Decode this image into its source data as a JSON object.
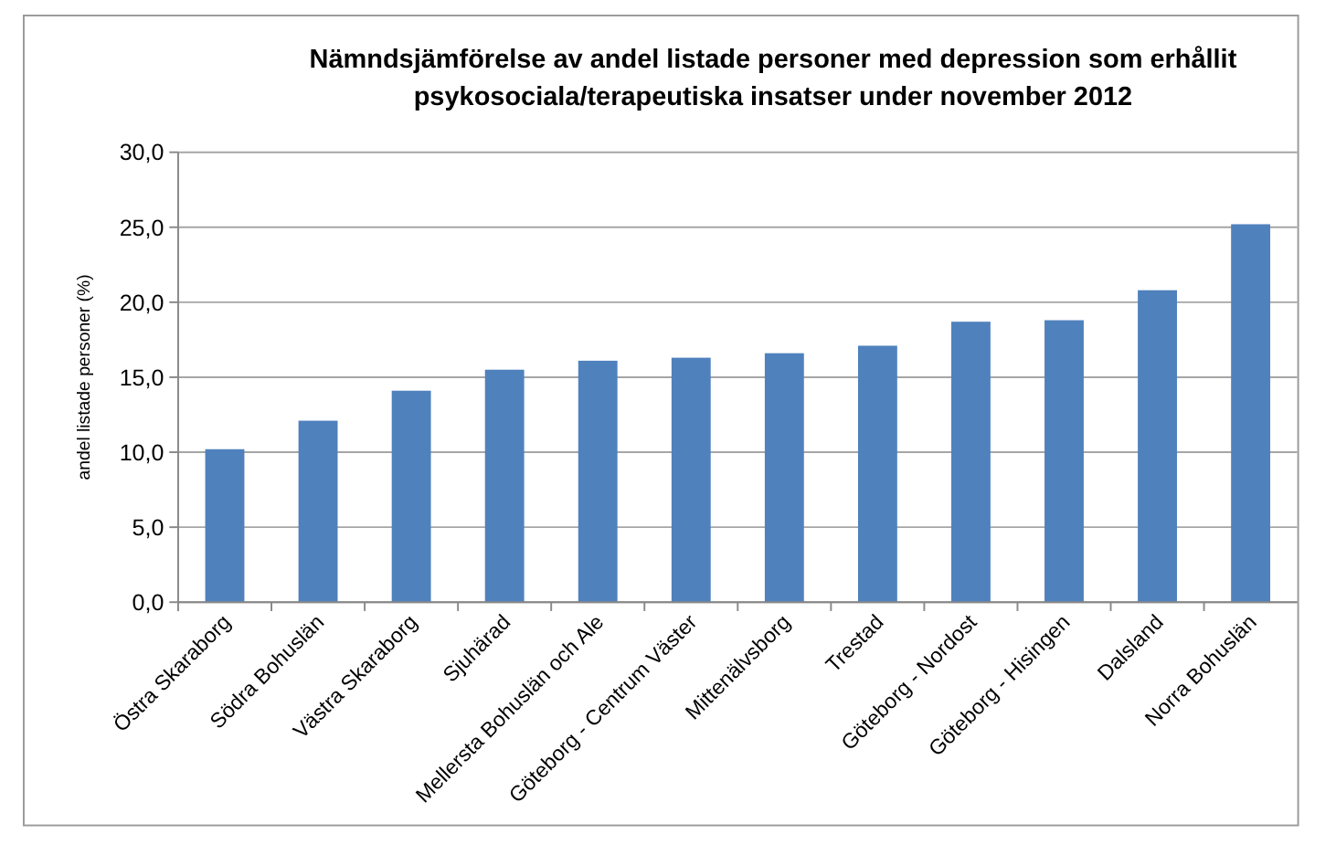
{
  "chart_data": {
    "type": "bar",
    "title": "Nämndsjämförelse av andel listade personer med depression som erhållit psykosociala/terapeutiska insatser under november 2012",
    "ylabel": "andel listade personer (%)",
    "categories": [
      "Östra Skaraborg",
      "Södra Bohuslän",
      "Västra Skaraborg",
      "Sjuhärad",
      "Mellersta Bohuslän och Ale",
      "Göteborg - Centrum Väster",
      "Mittenälvsborg",
      "Trestad",
      "Göteborg - Nordost",
      "Göteborg - Hisingen",
      "Dalsland",
      "Norra Bohuslän"
    ],
    "values": [
      10.2,
      12.1,
      14.1,
      15.5,
      16.1,
      16.3,
      16.6,
      17.1,
      18.7,
      18.8,
      20.8,
      25.2
    ],
    "color": "#4f81bd",
    "ylim": [
      0,
      30
    ],
    "yticks": [
      {
        "value": 0,
        "label": "0,0"
      },
      {
        "value": 5,
        "label": "5,0"
      },
      {
        "value": 10,
        "label": "10,0"
      },
      {
        "value": 15,
        "label": "15,0"
      },
      {
        "value": 20,
        "label": "20,0"
      },
      {
        "value": 25,
        "label": "25,0"
      },
      {
        "value": 30,
        "label": "30,0"
      }
    ],
    "grid": "y"
  }
}
